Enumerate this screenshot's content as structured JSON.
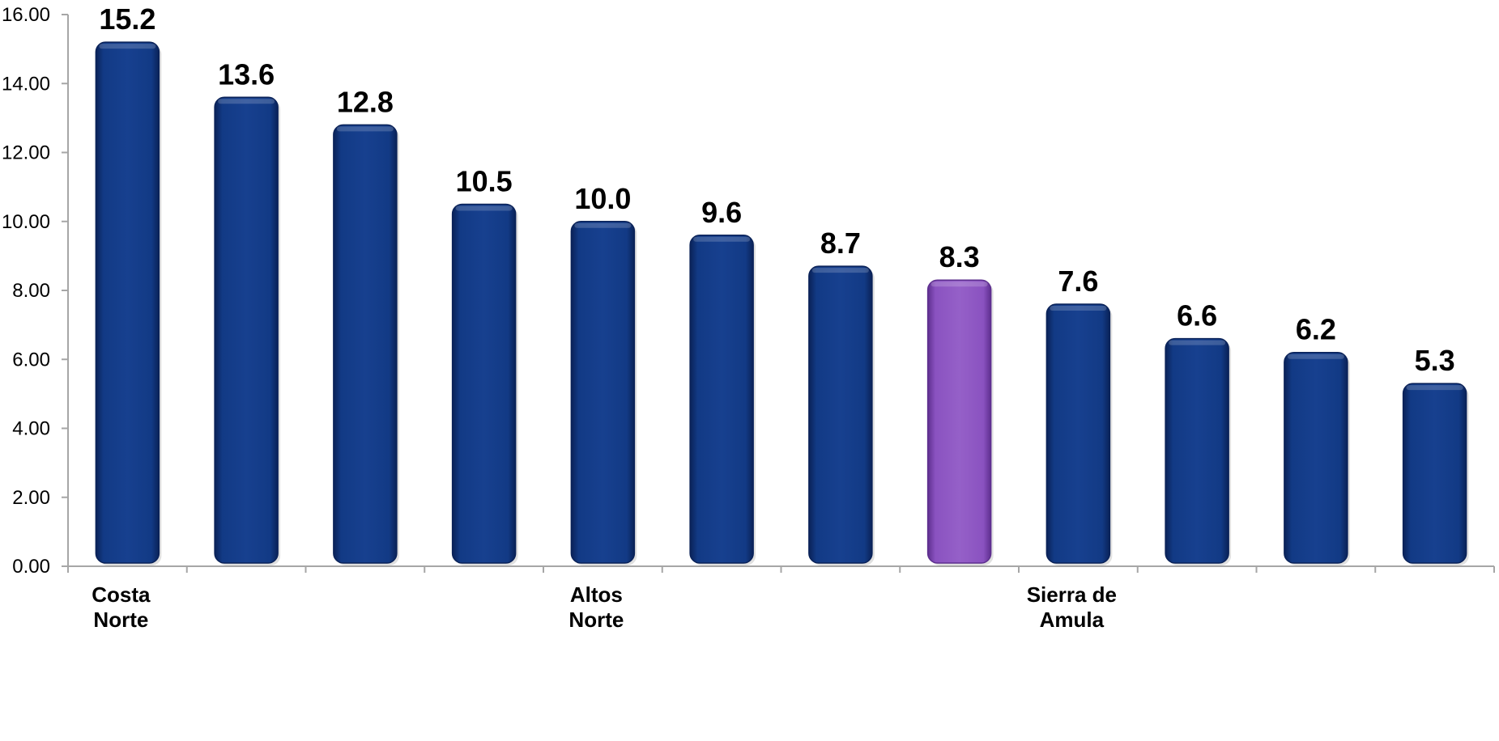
{
  "chart_data": {
    "type": "bar",
    "categories": [
      "Costa Norte",
      "",
      "",
      "",
      "Altos Norte",
      "",
      "",
      "",
      "Sierra de Amula",
      "",
      "",
      ""
    ],
    "values": [
      15.2,
      13.6,
      12.8,
      10.5,
      10.0,
      9.6,
      8.7,
      8.3,
      7.6,
      6.6,
      6.2,
      5.3
    ],
    "value_labels": [
      "15.2",
      "13.6",
      "12.8",
      "10.5",
      "10.0",
      "9.6",
      "8.7",
      "8.3",
      "7.6",
      "6.6",
      "6.2",
      "5.3"
    ],
    "highlight_index": 7,
    "ylim": [
      0,
      16
    ],
    "yticks": [
      "0.00",
      "2.00",
      "4.00",
      "6.00",
      "8.00",
      "10.00",
      "12.00",
      "14.00",
      "16.00"
    ],
    "grid": false,
    "colors": {
      "bar": "#123a85",
      "bar_dark": "#0a2258",
      "highlight": "#8a52c0",
      "highlight_dark": "#5e2f8f",
      "axis": "#a6a6a6"
    }
  }
}
